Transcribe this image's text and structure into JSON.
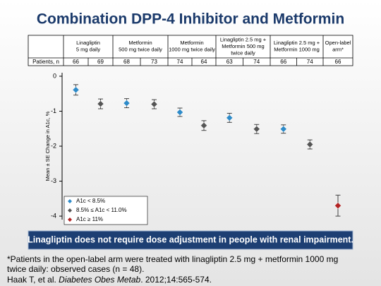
{
  "header": {
    "title": "Combination DPP-4 Inhibitor and Metformin"
  },
  "table": {
    "row_label": "Patients, n",
    "groups": [
      {
        "label": [
          "Linagliptin",
          "5 mg daily"
        ],
        "patients": [
          66,
          69
        ]
      },
      {
        "label": [
          "Metformin",
          "500 mg twice daily"
        ],
        "patients": [
          68,
          73
        ]
      },
      {
        "label": [
          "Metformin",
          "1000 mg twice daily"
        ],
        "patients": [
          74,
          64
        ]
      },
      {
        "label": [
          "Linagliptin 2.5 mg +",
          "Metformin 500 mg",
          "twice daily"
        ],
        "patients": [
          63,
          74
        ]
      },
      {
        "label": [
          "Linagliptin 2.5 mg +",
          "Metformin 1000 mg"
        ],
        "patients": [
          66,
          74
        ]
      },
      {
        "label": [
          "Open-label",
          "arm*"
        ],
        "patients": [
          66
        ]
      }
    ]
  },
  "chart_data": {
    "type": "scatter",
    "y_label": "Mean ± SE Change in A1c, %",
    "categories": [
      null,
      null,
      null,
      null,
      null,
      null,
      null,
      null,
      null,
      null,
      null
    ],
    "series": [
      {
        "name": "A1c < 8.5%",
        "color": "#2e8bc9",
        "values": [
          -0.39,
          null,
          -0.77,
          null,
          -1.03,
          null,
          -1.19,
          null,
          -1.51,
          null,
          null
        ],
        "errors": [
          0.15,
          null,
          0.13,
          null,
          0.12,
          null,
          0.13,
          null,
          0.12,
          null,
          null
        ]
      },
      {
        "name": "8.5% ≤ A1c < 11.0%",
        "color": "#555555",
        "values": [
          null,
          -0.79,
          null,
          -0.8,
          null,
          -1.41,
          null,
          -1.51,
          null,
          -1.95,
          null
        ],
        "errors": [
          null,
          0.14,
          null,
          0.13,
          null,
          0.14,
          null,
          0.13,
          null,
          0.13,
          null
        ]
      },
      {
        "name": "A1c ≥ 11%",
        "color": "#b22222",
        "values": [
          null,
          null,
          null,
          null,
          null,
          null,
          null,
          null,
          null,
          null,
          -3.7
        ],
        "errors": [
          null,
          null,
          null,
          null,
          null,
          null,
          null,
          null,
          null,
          null,
          0.3
        ]
      }
    ],
    "ylim": [
      -4.1,
      0.1
    ],
    "yticks": [
      0,
      -1,
      -2,
      -3,
      -4
    ]
  },
  "banner": "Linagliptin does not require dose adjustment in people with renal impairment.",
  "footnote": [
    "*Patients in the open-label arm were treated with linagliptin 2.5 mg + metformin 1000 mg",
    "twice daily: observed cases (n = 48)."
  ],
  "reference": {
    "authors": "Haak T, et al. ",
    "journal": "Diabetes Obes Metab",
    "citation": ". 2012;14:565-574."
  }
}
